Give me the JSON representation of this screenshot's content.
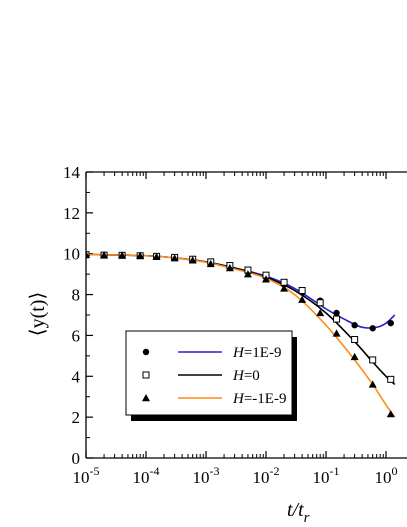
{
  "chart_data": {
    "type": "line",
    "title": "",
    "xlabel": "t/t",
    "xlabel_sub": "r",
    "ylabel": "⟨y(t)⟩",
    "xscale": "log",
    "xlim": [
      1e-05,
      1
    ],
    "ylim": [
      0,
      14
    ],
    "x_ticks": [
      {
        "base": "10",
        "exp": "-5"
      },
      {
        "base": "10",
        "exp": "-4"
      },
      {
        "base": "10",
        "exp": "-3"
      },
      {
        "base": "10",
        "exp": "-2"
      },
      {
        "base": "10",
        "exp": "-1"
      },
      {
        "base": "10",
        "exp": "0"
      }
    ],
    "y_ticks": [
      "0",
      "2",
      "4",
      "6",
      "8",
      "10",
      "12",
      "14"
    ],
    "grid": false,
    "legend_position": "lower-left",
    "series": [
      {
        "name_italic": "H",
        "name_rest": "=1E-9",
        "marker": "filled-circle",
        "line_color": "#2222cc",
        "x": [
          1e-05,
          2e-05,
          4e-05,
          8e-05,
          0.00015,
          0.0003,
          0.0006,
          0.0012,
          0.0025,
          0.005,
          0.01,
          0.02,
          0.04,
          0.08,
          0.15,
          0.3,
          0.6,
          1.2
        ],
        "y": [
          9.95,
          9.93,
          9.92,
          9.9,
          9.86,
          9.8,
          9.7,
          9.55,
          9.35,
          9.1,
          8.85,
          8.5,
          8.1,
          7.7,
          7.1,
          6.5,
          6.35,
          6.6
        ],
        "curve_x": [
          1e-05,
          3e-05,
          0.0001,
          0.0003,
          0.001,
          0.003,
          0.01,
          0.03,
          0.1,
          0.2,
          0.4,
          0.7,
          1.0,
          1.4
        ],
        "curve_y": [
          9.96,
          9.94,
          9.9,
          9.8,
          9.6,
          9.3,
          8.9,
          8.3,
          7.3,
          6.8,
          6.4,
          6.4,
          6.6,
          7.0
        ]
      },
      {
        "name_italic": "H",
        "name_rest": "=0",
        "marker": "open-square",
        "line_color": "#000000",
        "x": [
          1e-05,
          2e-05,
          4e-05,
          8e-05,
          0.00015,
          0.0003,
          0.0006,
          0.0012,
          0.0025,
          0.005,
          0.01,
          0.02,
          0.04,
          0.08,
          0.15,
          0.3,
          0.6,
          1.2
        ],
        "y": [
          9.95,
          9.93,
          9.92,
          9.9,
          9.87,
          9.82,
          9.73,
          9.6,
          9.42,
          9.2,
          8.95,
          8.6,
          8.2,
          7.6,
          6.8,
          5.8,
          4.8,
          3.85
        ],
        "curve_x": [
          1e-05,
          3e-05,
          0.0001,
          0.0003,
          0.001,
          0.003,
          0.01,
          0.03,
          0.1,
          0.3,
          0.6,
          1.0,
          1.4
        ],
        "curve_y": [
          9.96,
          9.94,
          9.9,
          9.8,
          9.6,
          9.3,
          8.85,
          8.2,
          7.1,
          5.7,
          4.7,
          4.0,
          3.6
        ]
      },
      {
        "name_italic": "H",
        "name_rest": "=-1E-9",
        "marker": "filled-triangle",
        "line_color": "#ff8c1a",
        "x": [
          1e-05,
          2e-05,
          4e-05,
          8e-05,
          0.00015,
          0.0003,
          0.0006,
          0.0012,
          0.0025,
          0.005,
          0.01,
          0.02,
          0.04,
          0.08,
          0.15,
          0.3,
          0.6,
          1.2
        ],
        "y": [
          9.95,
          9.93,
          9.92,
          9.9,
          9.85,
          9.78,
          9.68,
          9.5,
          9.3,
          9.0,
          8.75,
          8.3,
          7.75,
          7.1,
          6.1,
          4.95,
          3.6,
          2.15
        ],
        "curve_x": [
          1e-05,
          3e-05,
          0.0001,
          0.0003,
          0.001,
          0.003,
          0.01,
          0.03,
          0.1,
          0.3,
          0.6,
          1.0,
          1.4
        ],
        "curve_y": [
          9.96,
          9.94,
          9.9,
          9.8,
          9.58,
          9.25,
          8.8,
          8.0,
          6.5,
          4.8,
          3.6,
          2.6,
          2.0
        ]
      }
    ]
  }
}
